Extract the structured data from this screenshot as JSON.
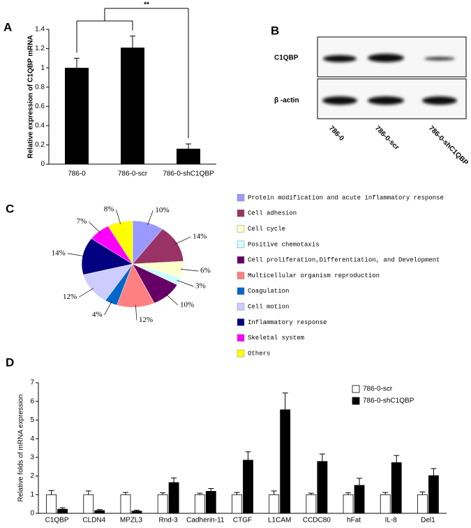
{
  "chart_data": [
    {
      "panel": "A",
      "type": "bar",
      "y_label": "Relative expression of C1QBP mRNA",
      "categories": [
        "786-0",
        "786-0-scr",
        "786-0-shC1QBP"
      ],
      "values": [
        1.0,
        1.21,
        0.16
      ],
      "errors": [
        0.1,
        0.12,
        0.05
      ],
      "color": "#000000",
      "ylim": [
        0,
        1.4
      ],
      "yticks": [
        0,
        0.2,
        0.4,
        0.6,
        0.8,
        1,
        1.2,
        1.4
      ],
      "annotation": "**"
    },
    {
      "panel": "B",
      "type": "blot",
      "rows": [
        "C1QBP",
        "β -actin"
      ],
      "lanes": [
        "786-0",
        "786-0-scr",
        "786-0-shC1QBP"
      ]
    },
    {
      "panel": "C",
      "type": "pie",
      "categories": [
        "Protein modification and acute inflammatory response",
        "Cell adhesion",
        "Cell cycle",
        "Positive chemotaxis",
        "Cell proliferation,Differentiation, and Development",
        "Multicellular organism reproduction",
        "Coagulation",
        "Cell motion",
        "Inflammatory response",
        "Skeletal system",
        "Others"
      ],
      "values": [
        10,
        14,
        6,
        3,
        10,
        12,
        4,
        12,
        14,
        7,
        8
      ],
      "value_labels": [
        "10%",
        "14%",
        "6%",
        "3%",
        "10%",
        "12%",
        "4%",
        "12%",
        "14%",
        "7%",
        "8%"
      ],
      "colors": [
        "#9999ff",
        "#993366",
        "#ffffcc",
        "#ccffff",
        "#660066",
        "#ff8080",
        "#0066cc",
        "#ccccff",
        "#000080",
        "#ff00ff",
        "#ffff00"
      ]
    },
    {
      "panel": "D",
      "type": "grouped-bar",
      "y_label": "Relative folds of mRNA expression",
      "categories": [
        "C1QBP",
        "CLDN4",
        "MPZL3",
        "Rnd-3",
        "Cadherin-11",
        "CTGF",
        "L1CAM",
        "CCDC80",
        "hFat",
        "IL-8",
        "Del1"
      ],
      "series": [
        {
          "name": "786-0-scr",
          "color": "#ffffff",
          "values": [
            1,
            1,
            1,
            1,
            1,
            1,
            1,
            1,
            1,
            1,
            1
          ],
          "errors": [
            0.22,
            0.2,
            0.12,
            0.1,
            0.08,
            0.12,
            0.2,
            0.08,
            0.1,
            0.12,
            0.15
          ]
        },
        {
          "name": "786-0-shC1QBP",
          "color": "#000000",
          "values": [
            0.22,
            0.15,
            0.12,
            1.65,
            1.18,
            2.85,
            5.55,
            2.78,
            1.5,
            2.72,
            2.02
          ],
          "errors": [
            0.08,
            0.05,
            0.05,
            0.25,
            0.15,
            0.45,
            0.9,
            0.4,
            0.38,
            0.38,
            0.38
          ]
        }
      ],
      "ylim": [
        0,
        7
      ],
      "yticks": [
        0,
        1,
        2,
        3,
        4,
        5,
        6,
        7
      ],
      "legend": "top-right"
    }
  ]
}
